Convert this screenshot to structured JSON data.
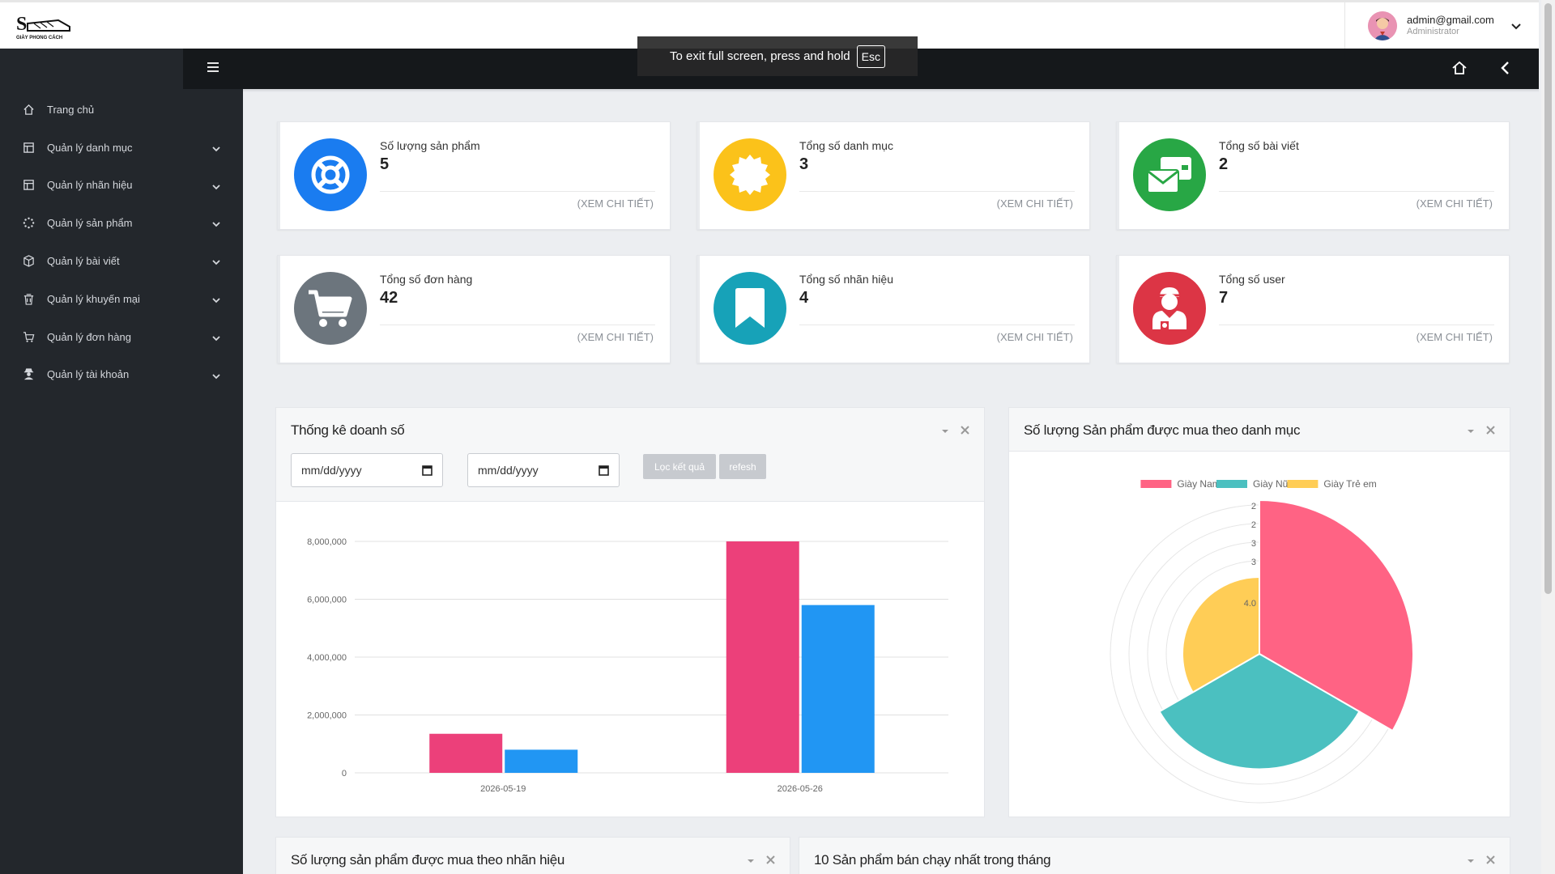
{
  "header": {
    "logo_text": "GIÀY PHONG CÁCH",
    "user_email": "admin@gmail.com",
    "user_role": "Administrator"
  },
  "toast": {
    "text": "To exit full screen, press and hold",
    "key": "Esc"
  },
  "sidebar": {
    "items": [
      {
        "label": "Trang chủ",
        "icon": "home-icon",
        "has_caret": false
      },
      {
        "label": "Quản lý danh mục",
        "icon": "table-icon",
        "has_caret": true
      },
      {
        "label": "Quản lý nhãn hiệu",
        "icon": "table-icon",
        "has_caret": true
      },
      {
        "label": "Quản lý sản phẩm",
        "icon": "spinner-icon",
        "has_caret": true
      },
      {
        "label": "Quản lý bài viết",
        "icon": "box-icon",
        "has_caret": true
      },
      {
        "label": "Quản lý khuyến mại",
        "icon": "trash-icon",
        "has_caret": true
      },
      {
        "label": "Quản lý đơn hàng",
        "icon": "cart-icon",
        "has_caret": true
      },
      {
        "label": "Quản lý tài khoản",
        "icon": "user-secret-icon",
        "has_caret": true
      }
    ]
  },
  "stats": [
    {
      "label": "Số lượng sản phẩm",
      "value": "5",
      "link": "(XEM CHI TIẾT)",
      "color": "#1a7cf0",
      "icon": "lifebuoy-icon"
    },
    {
      "label": "Tổng số danh mục",
      "value": "3",
      "link": "(XEM CHI TIẾT)",
      "color": "#fbc21a",
      "icon": "certificate-icon"
    },
    {
      "label": "Tổng số bài viết",
      "value": "2",
      "link": "(XEM CHI TIẾT)",
      "color": "#28a745",
      "icon": "envelopes-icon"
    },
    {
      "label": "Tổng số đơn hàng",
      "value": "42",
      "link": "(XEM CHI TIẾT)",
      "color": "#6c757d",
      "icon": "cart-icon"
    },
    {
      "label": "Tổng số nhãn hiệu",
      "value": "4",
      "link": "(XEM CHI TIẾT)",
      "color": "#17a2b8",
      "icon": "bookmark-icon"
    },
    {
      "label": "Tổng số user",
      "value": "7",
      "link": "(XEM CHI TIẾT)",
      "color": "#dc3545",
      "icon": "user-injured-icon"
    }
  ],
  "sales_panel": {
    "title": "Thống kê doanh số",
    "date_placeholder_from": "mm/dd/yyyy",
    "date_placeholder_to": "mm/dd/yyyy",
    "filter_label": "Lọc kết quả",
    "refresh_label": "refesh"
  },
  "category_panel": {
    "title": "Số lượng Sản phẩm được mua theo danh mục"
  },
  "brand_panel": {
    "title": "Số lượng sản phẩm được mua theo nhãn hiệu"
  },
  "top_panel": {
    "title": "10 Sản phẩm bán chạy nhất trong tháng"
  },
  "chart_data": [
    {
      "type": "bar",
      "categories": [
        "2026-05-19",
        "2026-05-26"
      ],
      "series": [
        {
          "values": [
            1350000,
            8000000
          ],
          "color": "#ec407a"
        },
        {
          "values": [
            800000,
            5800000
          ],
          "color": "#2196f3"
        }
      ],
      "ylim": [
        0,
        8000000
      ],
      "yticks": [
        "0",
        "2,000,000",
        "4,000,000",
        "6,000,000",
        "8,000,000"
      ],
      "grid": true
    },
    {
      "type": "polarArea",
      "labels": [
        "Giày Nam",
        "Giày Nữ",
        "Giày Trẻ em"
      ],
      "values": [
        4,
        3,
        2
      ],
      "colors": [
        "#ff6384",
        "#4bc0c0",
        "#ffcd56"
      ],
      "rticks": [
        "2",
        "2",
        "3",
        "3",
        "4.0"
      ],
      "legend": "top"
    }
  ]
}
